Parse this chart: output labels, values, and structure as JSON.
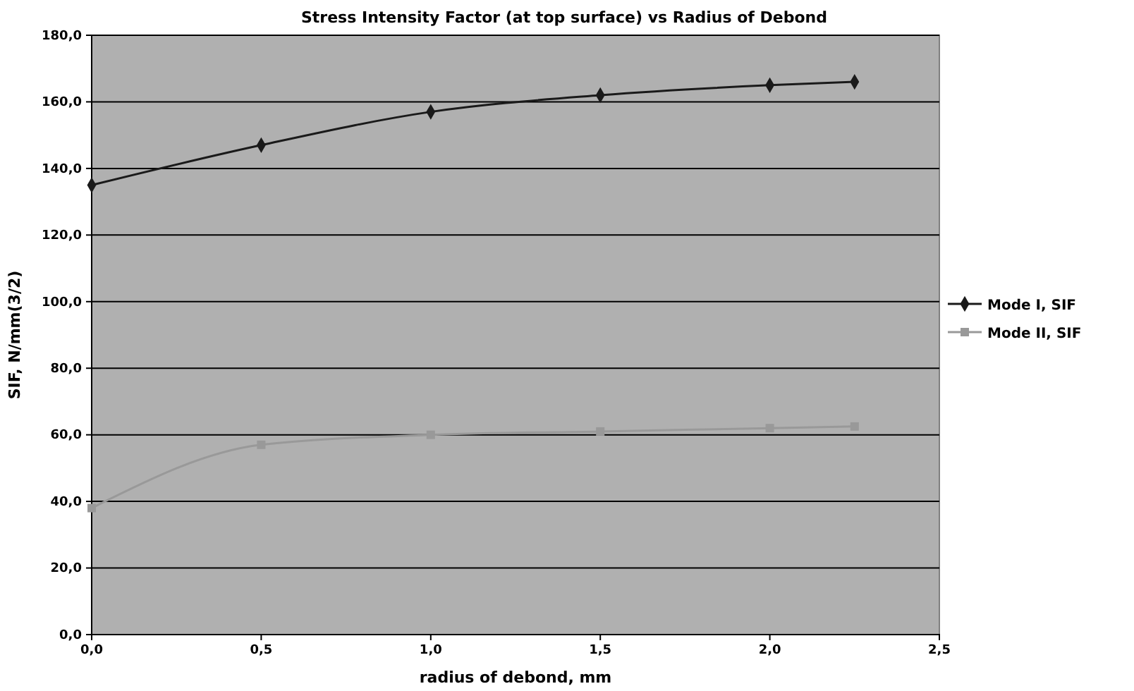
{
  "chart_data": {
    "type": "line",
    "title": "Stress Intensity Factor (at top surface) vs Radius of Debond",
    "xlabel": "radius of debond, mm",
    "ylabel": "SIF, N/mm(3/2)",
    "x": [
      0,
      0.5,
      1,
      1.5,
      2,
      2.25
    ],
    "series": [
      {
        "name": "Mode I, SIF",
        "color": "#1a1a1a",
        "marker": "diamond",
        "values": [
          135,
          147,
          157,
          162,
          165,
          166
        ]
      },
      {
        "name": "Mode II, SIF",
        "color": "#999999",
        "marker": "square",
        "values": [
          38,
          57,
          60,
          61,
          62,
          62.5
        ]
      }
    ],
    "xlim": [
      0,
      2.5
    ],
    "xticks": [
      {
        "value": 0,
        "label": "0,0"
      },
      {
        "value": 0.5,
        "label": "0,5"
      },
      {
        "value": 1,
        "label": "1,0"
      },
      {
        "value": 1.5,
        "label": "1,5"
      },
      {
        "value": 2,
        "label": "2,0"
      },
      {
        "value": 2.5,
        "label": "2,5"
      }
    ],
    "ylim": [
      0,
      180
    ],
    "yticks": [
      {
        "value": 0,
        "label": "0,0"
      },
      {
        "value": 20,
        "label": "20,0"
      },
      {
        "value": 40,
        "label": "40,0"
      },
      {
        "value": 60,
        "label": "60,0"
      },
      {
        "value": 80,
        "label": "80,0"
      },
      {
        "value": 100,
        "label": "100,0"
      },
      {
        "value": 120,
        "label": "120,0"
      },
      {
        "value": 140,
        "label": "140,0"
      },
      {
        "value": 160,
        "label": "160,0"
      },
      {
        "value": 180,
        "label": "180,0"
      }
    ],
    "grid": "y",
    "legend": "right",
    "line_style": "solid"
  }
}
